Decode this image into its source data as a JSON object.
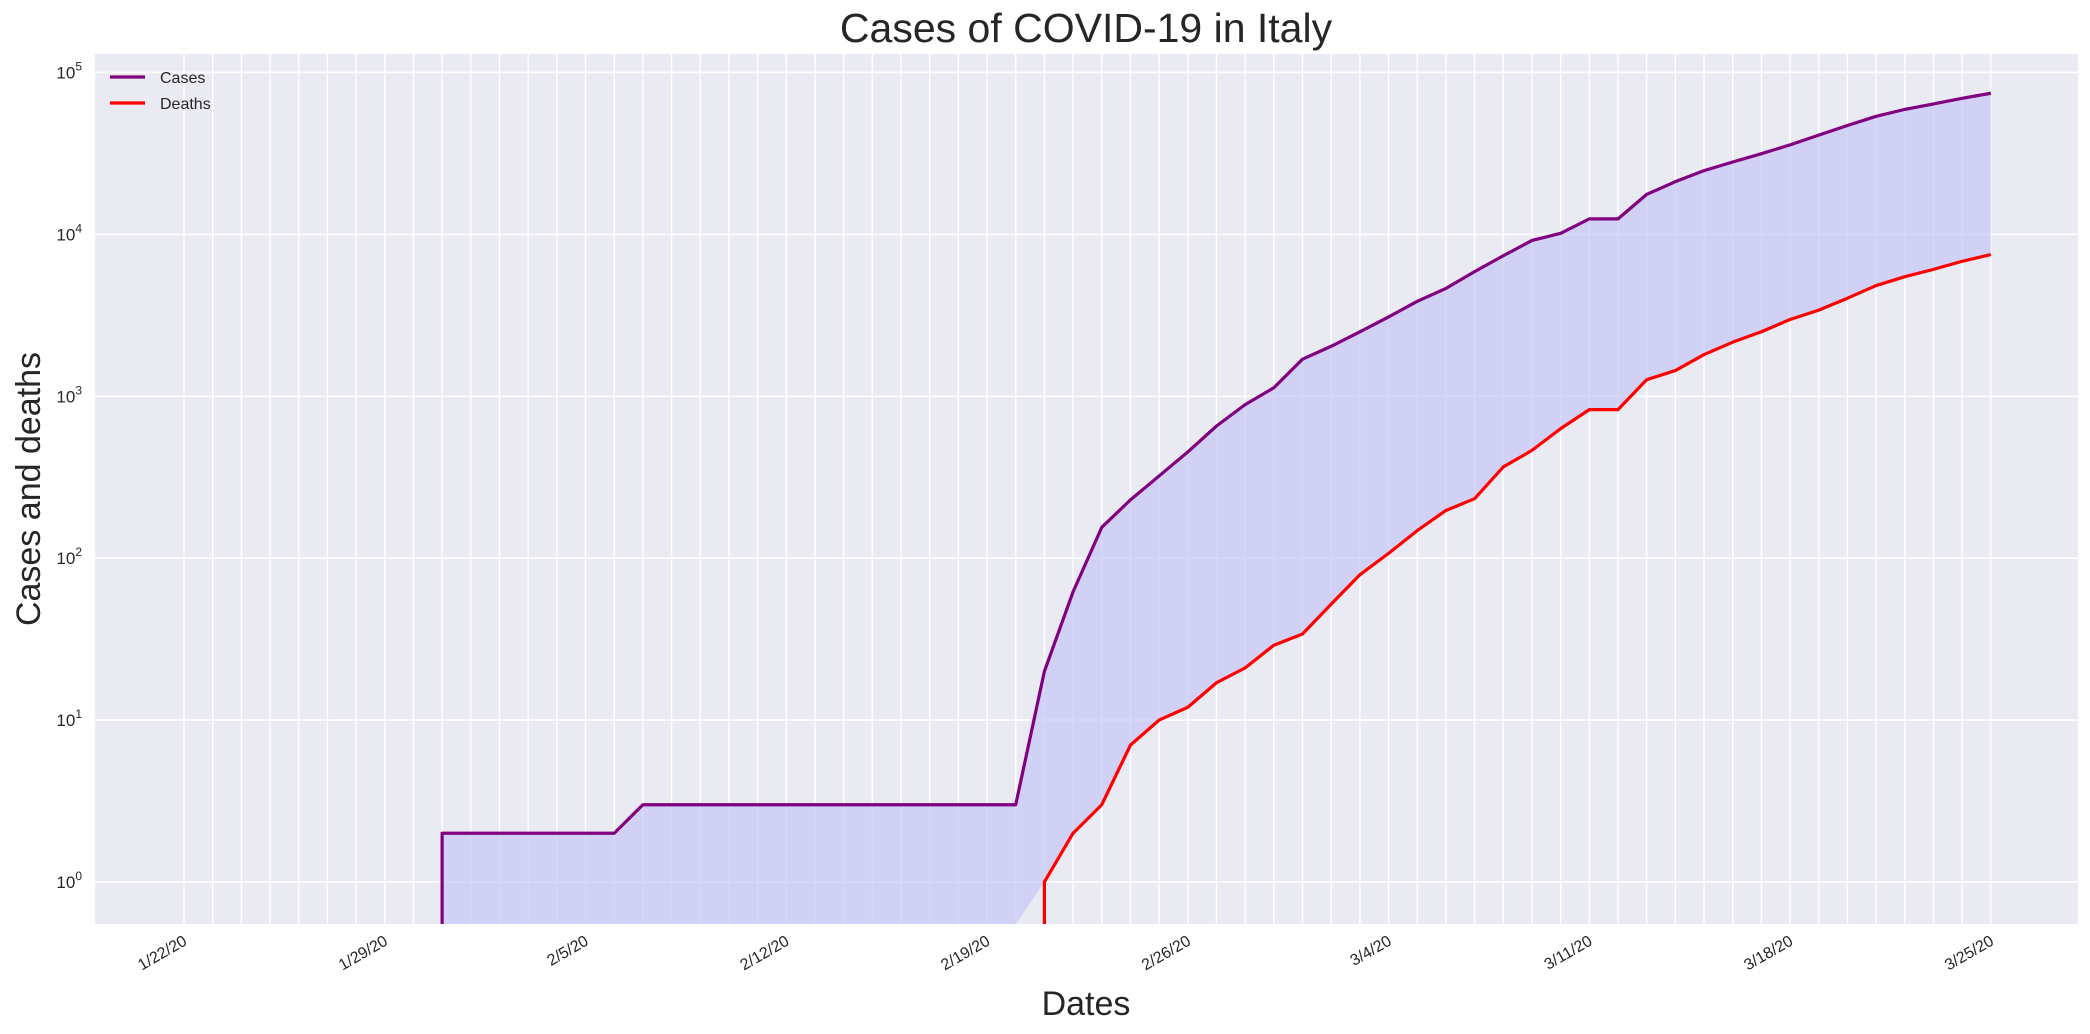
{
  "chart_data": {
    "type": "line",
    "title": "Cases of COVID-19 in Italy",
    "xlabel": "Dates",
    "ylabel": "Cases and deaths",
    "yscale": "log",
    "ylim": [
      0.55,
      130000
    ],
    "grid": true,
    "legend_position": "top-left",
    "dates": [
      "1/22/20",
      "1/23/20",
      "1/24/20",
      "1/25/20",
      "1/26/20",
      "1/27/20",
      "1/28/20",
      "1/29/20",
      "1/30/20",
      "1/31/20",
      "2/1/20",
      "2/2/20",
      "2/3/20",
      "2/4/20",
      "2/5/20",
      "2/6/20",
      "2/7/20",
      "2/8/20",
      "2/9/20",
      "2/10/20",
      "2/11/20",
      "2/12/20",
      "2/13/20",
      "2/14/20",
      "2/15/20",
      "2/16/20",
      "2/17/20",
      "2/18/20",
      "2/19/20",
      "2/20/20",
      "2/21/20",
      "2/22/20",
      "2/23/20",
      "2/24/20",
      "2/25/20",
      "2/26/20",
      "2/27/20",
      "2/28/20",
      "2/29/20",
      "3/1/20",
      "3/2/20",
      "3/3/20",
      "3/4/20",
      "3/5/20",
      "3/6/20",
      "3/7/20",
      "3/8/20",
      "3/9/20",
      "3/10/20",
      "3/11/20",
      "3/12/20",
      "3/13/20",
      "3/14/20",
      "3/15/20",
      "3/16/20",
      "3/17/20",
      "3/18/20",
      "3/19/20",
      "3/20/20",
      "3/21/20",
      "3/22/20",
      "3/23/20",
      "3/24/20",
      "3/25/20"
    ],
    "xtick_labels": [
      "1/22/20",
      "1/29/20",
      "2/5/20",
      "2/12/20",
      "2/19/20",
      "2/26/20",
      "3/4/20",
      "3/11/20",
      "3/18/20",
      "3/25/20"
    ],
    "ytick_labels": [
      {
        "base": "10",
        "exp": "0",
        "value": 1
      },
      {
        "base": "10",
        "exp": "1",
        "value": 10
      },
      {
        "base": "10",
        "exp": "2",
        "value": 100
      },
      {
        "base": "10",
        "exp": "3",
        "value": 1000
      },
      {
        "base": "10",
        "exp": "4",
        "value": 10000
      },
      {
        "base": "10",
        "exp": "5",
        "value": 100000
      }
    ],
    "series": [
      {
        "name": "Cases",
        "color": "#800080",
        "values": [
          0,
          0,
          0,
          0,
          0,
          0,
          0,
          0,
          0,
          2,
          2,
          2,
          2,
          2,
          2,
          2,
          3,
          3,
          3,
          3,
          3,
          3,
          3,
          3,
          3,
          3,
          3,
          3,
          3,
          3,
          20,
          62,
          155,
          229,
          322,
          453,
          655,
          888,
          1128,
          1694,
          2036,
          2502,
          3089,
          3858,
          4636,
          5883,
          7375,
          9172,
          10149,
          12462,
          12462,
          17660,
          21157,
          24747,
          27980,
          31506,
          35713,
          41035,
          47021,
          53578,
          59138,
          63927,
          69176,
          74386
        ]
      },
      {
        "name": "Deaths",
        "color": "#ff0000",
        "values": [
          0,
          0,
          0,
          0,
          0,
          0,
          0,
          0,
          0,
          0,
          0,
          0,
          0,
          0,
          0,
          0,
          0,
          0,
          0,
          0,
          0,
          0,
          0,
          0,
          0,
          0,
          0,
          0,
          0,
          0,
          1,
          2,
          3,
          7,
          10,
          12,
          17,
          21,
          29,
          34,
          52,
          79,
          107,
          148,
          197,
          233,
          366,
          463,
          631,
          827,
          827,
          1266,
          1441,
          1809,
          2158,
          2503,
          2978,
          3405,
          4032,
          4825,
          5476,
          6077,
          6820,
          7503
        ]
      }
    ],
    "fill_color": "#c8c8f5"
  }
}
